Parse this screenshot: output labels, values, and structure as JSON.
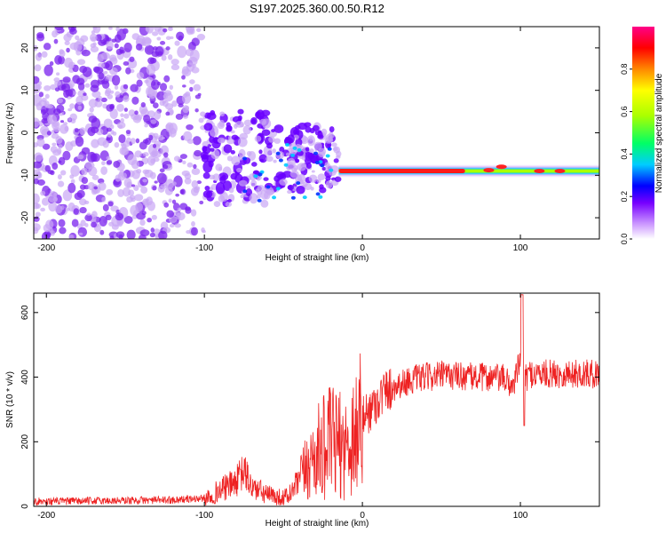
{
  "title": "S197.2025.360.00.50.R12",
  "colors": {
    "axis": "#000000",
    "snr_line": "#ee2222",
    "background": "#ffffff"
  },
  "chart_data": [
    {
      "type": "heatmap",
      "name": "spectrogram",
      "xlabel": "Height of straight line (km)",
      "ylabel": "Frequency (Hz)",
      "xlim": [
        -208,
        150
      ],
      "ylim": [
        -25,
        25
      ],
      "xticks": [
        -200,
        -100,
        0,
        100
      ],
      "yticks": [
        20,
        10,
        0,
        -10,
        -20
      ],
      "xtick_labels": [
        "-200",
        "-100",
        "0",
        "100"
      ],
      "ytick_labels": [
        "20",
        "10",
        "0",
        "-10",
        "-20"
      ],
      "colorbar": {
        "label": "Normalized spectral amplitude",
        "range": [
          0,
          1
        ],
        "ticks": [
          0.0,
          0.2,
          0.4,
          0.6,
          0.8
        ],
        "tick_labels": [
          "0.0",
          "0.2",
          "0.4",
          "0.6",
          "0.8"
        ],
        "colormap": [
          "#ffffff",
          "#cc99ff",
          "#7700ff",
          "#0000ff",
          "#00ccff",
          "#00ff66",
          "#aaff00",
          "#ffff00",
          "#ff8800",
          "#ff0000",
          "#ff0088"
        ]
      },
      "features": {
        "noise_region_x": [
          -208,
          -15
        ],
        "tone_x": [
          -15,
          150
        ],
        "tone_frequency_hz": -9,
        "tone_peak_x": [
          -15,
          65
        ]
      }
    },
    {
      "type": "line",
      "name": "snr",
      "xlabel": "Height of straight line (km)",
      "ylabel": "SNR (10 * v/v)",
      "xlim": [
        -208,
        150
      ],
      "ylim": [
        0,
        660
      ],
      "xticks": [
        -200,
        -100,
        0,
        100
      ],
      "yticks": [
        0,
        200,
        400,
        600
      ],
      "xtick_labels": [
        "-200",
        "-100",
        "0",
        "100"
      ],
      "ytick_labels": [
        "0",
        "200",
        "400",
        "600"
      ],
      "series": [
        {
          "name": "SNR",
          "x": [
            -208,
            -150,
            -120,
            -100,
            -90,
            -80,
            -75,
            -70,
            -60,
            -50,
            -45,
            -40,
            -35,
            -30,
            -25,
            -20,
            -15,
            -10,
            -5,
            0,
            5,
            10,
            15,
            20,
            30,
            40,
            50,
            60,
            70,
            80,
            90,
            95,
            100,
            102,
            105,
            110,
            120,
            130,
            140,
            150
          ],
          "y": [
            15,
            18,
            20,
            25,
            50,
            75,
            110,
            60,
            35,
            25,
            40,
            80,
            120,
            160,
            180,
            200,
            190,
            180,
            230,
            270,
            300,
            330,
            360,
            370,
            390,
            400,
            405,
            405,
            400,
            400,
            395,
            370,
            450,
            380,
            410,
            410,
            410,
            410,
            410,
            410
          ]
        }
      ]
    }
  ]
}
